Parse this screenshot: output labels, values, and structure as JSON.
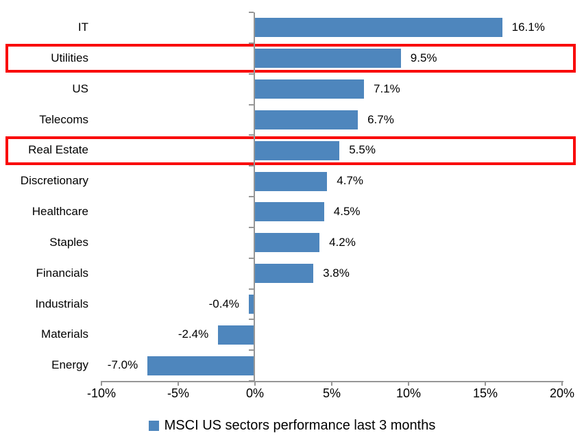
{
  "colors": {
    "bar": "#4e86bd",
    "highlight_border": "#f90606",
    "axis": "#969696",
    "text": "#000000",
    "background": "#ffffff"
  },
  "legend": {
    "marker_icon": "blue-square",
    "label": "MSCI US sectors performance last 3 months"
  },
  "chart_data": {
    "type": "bar",
    "orientation": "horizontal",
    "title": "",
    "xlabel": "",
    "ylabel": "",
    "categories": [
      "IT",
      "Utilities",
      "US",
      "Telecoms",
      "Real Estate",
      "Discretionary",
      "Healthcare",
      "Staples",
      "Financials",
      "Industrials",
      "Materials",
      "Energy"
    ],
    "values": [
      16.1,
      9.5,
      7.1,
      6.7,
      5.5,
      4.7,
      4.5,
      4.2,
      3.8,
      -0.4,
      -2.4,
      -7.0
    ],
    "data_labels": [
      "16.1%",
      "9.5%",
      "7.1%",
      "6.7%",
      "5.5%",
      "4.7%",
      "4.5%",
      "4.2%",
      "3.8%",
      "-0.4%",
      "-2.4%",
      "-7.0%"
    ],
    "highlighted_categories": [
      "Utilities",
      "Real Estate"
    ],
    "x_ticks": [
      -10,
      -5,
      0,
      5,
      10,
      15,
      20
    ],
    "x_tick_labels": [
      "-10%",
      "-5%",
      "0%",
      "5%",
      "10%",
      "15%",
      "20%"
    ],
    "xlim": [
      -10,
      20
    ],
    "grid": false,
    "legend_position": "bottom",
    "series_name": "MSCI US sectors performance last 3 months"
  }
}
